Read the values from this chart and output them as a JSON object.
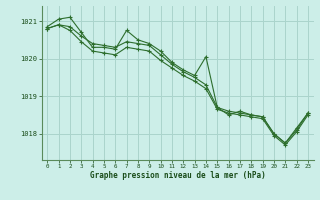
{
  "bg_color": "#cceee8",
  "grid_color": "#aad4cc",
  "line_color": "#2d6e2d",
  "marker_color": "#2d6e2d",
  "xlabel": "Graphe pression niveau de la mer (hPa)",
  "xlabel_color": "#1a4d1a",
  "ylabel_color": "#1a4d1a",
  "ylim": [
    1017.3,
    1021.4
  ],
  "yticks": [
    1018,
    1019,
    1020,
    1021
  ],
  "xticks": [
    0,
    1,
    2,
    3,
    4,
    5,
    6,
    7,
    8,
    9,
    10,
    11,
    12,
    13,
    14,
    15,
    16,
    17,
    18,
    19,
    20,
    21,
    22,
    23
  ],
  "series": [
    [
      1020.8,
      1020.9,
      1020.85,
      1020.6,
      1020.4,
      1020.35,
      1020.3,
      1020.45,
      1020.4,
      1020.35,
      1020.1,
      1019.85,
      1019.65,
      1019.5,
      1019.3,
      1018.7,
      1018.6,
      1018.55,
      1018.5,
      1018.45,
      1018.0,
      1017.75,
      1018.1,
      1018.55
    ],
    [
      1020.85,
      1021.05,
      1021.1,
      1020.7,
      1020.3,
      1020.3,
      1020.25,
      1020.75,
      1020.5,
      1020.4,
      1020.2,
      1019.9,
      1019.7,
      1019.55,
      1020.05,
      1018.7,
      1018.5,
      1018.6,
      1018.5,
      1018.45,
      1018.0,
      1017.75,
      1018.15,
      1018.55
    ],
    [
      1020.8,
      1020.9,
      1020.75,
      1020.45,
      1020.2,
      1020.15,
      1020.1,
      1020.3,
      1020.25,
      1020.2,
      1019.95,
      1019.75,
      1019.55,
      1019.4,
      1019.2,
      1018.65,
      1018.55,
      1018.5,
      1018.45,
      1018.4,
      1017.95,
      1017.7,
      1018.05,
      1018.5
    ]
  ]
}
